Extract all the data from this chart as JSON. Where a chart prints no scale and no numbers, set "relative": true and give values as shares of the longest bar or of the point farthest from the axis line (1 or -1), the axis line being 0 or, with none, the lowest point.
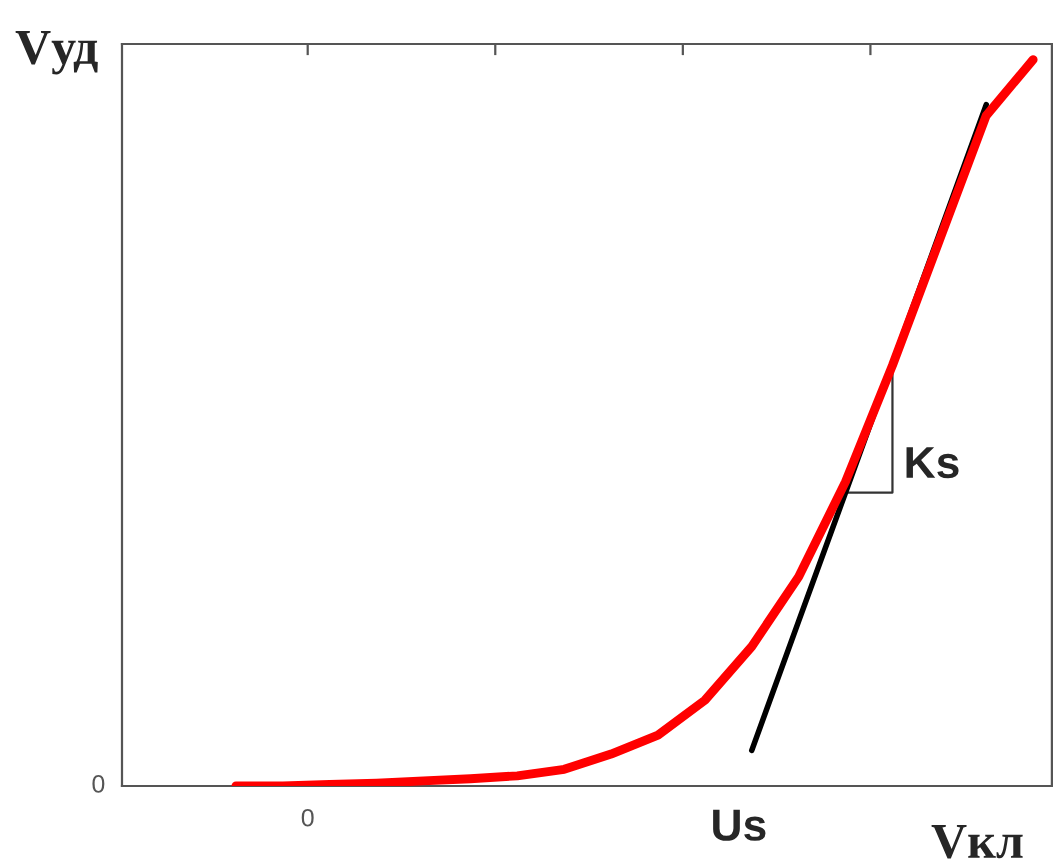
{
  "chart_data": {
    "type": "line",
    "relative": true,
    "xlabel": "Vкл",
    "ylabel": "Vуд",
    "categories": [
      null,
      null,
      null,
      null,
      null,
      null,
      null,
      null,
      null,
      null,
      null,
      null,
      null,
      null,
      null,
      null,
      null,
      null
    ],
    "series": [
      {
        "color": "#ff0000",
        "values": [
          0,
          0,
          0.002,
          0.004,
          0.007,
          0.01,
          0.014,
          0.023,
          0.044,
          0.07,
          0.118,
          0.192,
          0.288,
          0.419,
          0.579,
          0.751,
          0.923,
          1
        ]
      },
      {
        "color": "#000000",
        "values": [
          null,
          null,
          null,
          null,
          null,
          null,
          null,
          null,
          null,
          null,
          null,
          0.049,
          0.227,
          0.404,
          0.582,
          0.76,
          0.938,
          null
        ]
      }
    ],
    "annotations": [
      "0",
      "0",
      "Us",
      "Ks"
    ],
    "grid": false,
    "legend": false,
    "marker": "none",
    "line_style": "solid"
  }
}
